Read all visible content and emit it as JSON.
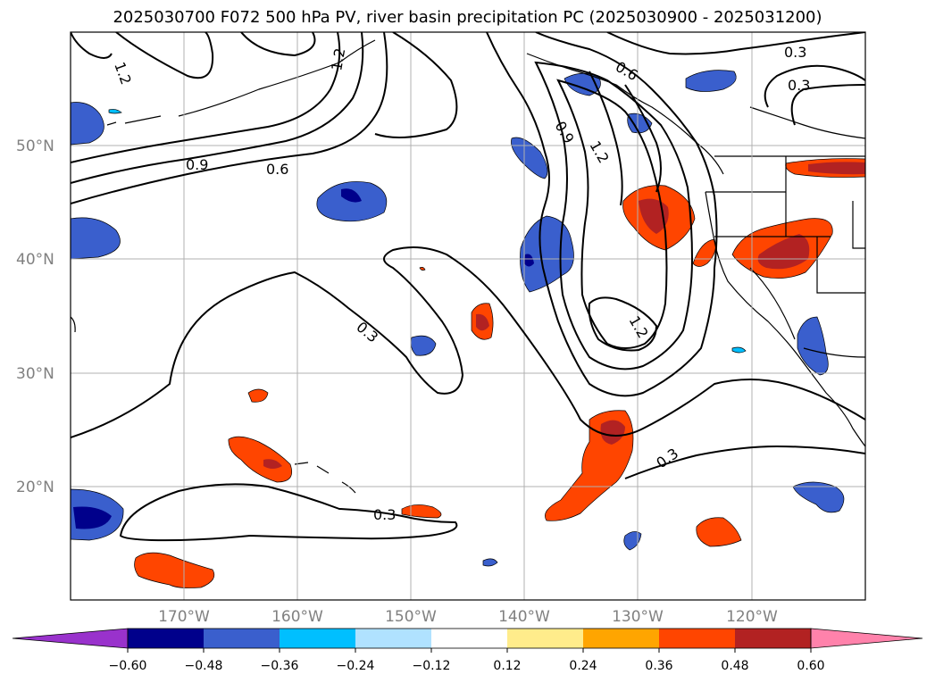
{
  "title": "2025030700 F072 500 hPa PV, river basin precipitation PC (2025030900 - 2025031200)",
  "lat_labels": [
    "50°N",
    "40°N",
    "30°N",
    "20°N"
  ],
  "lon_labels": [
    "170°W",
    "160°W",
    "150°W",
    "140°W",
    "130°W",
    "120°W"
  ],
  "contour_labels": [
    "1.2",
    "1.2",
    "0.9",
    "0.6",
    "0.3",
    "0.6",
    "0.3",
    "0.9",
    "1.2",
    "1.2",
    "0.3",
    "0.3",
    "0.3"
  ],
  "colorbar": {
    "ticks": [
      "−0.60",
      "−0.48",
      "−0.36",
      "−0.24",
      "−0.12",
      "0.12",
      "0.24",
      "0.36",
      "0.48",
      "0.60"
    ],
    "colors": [
      "#9932cc",
      "#00008b",
      "#3a5fcd",
      "#00bfff",
      "#b0e2ff",
      "#ffffff",
      "#ffec8b",
      "#ffa500",
      "#ff4500",
      "#b22222",
      "#ff82ab"
    ]
  },
  "colors": {
    "land_outline": "#000000",
    "grid": "#b0b0b0",
    "axis_label": "#808080"
  }
}
